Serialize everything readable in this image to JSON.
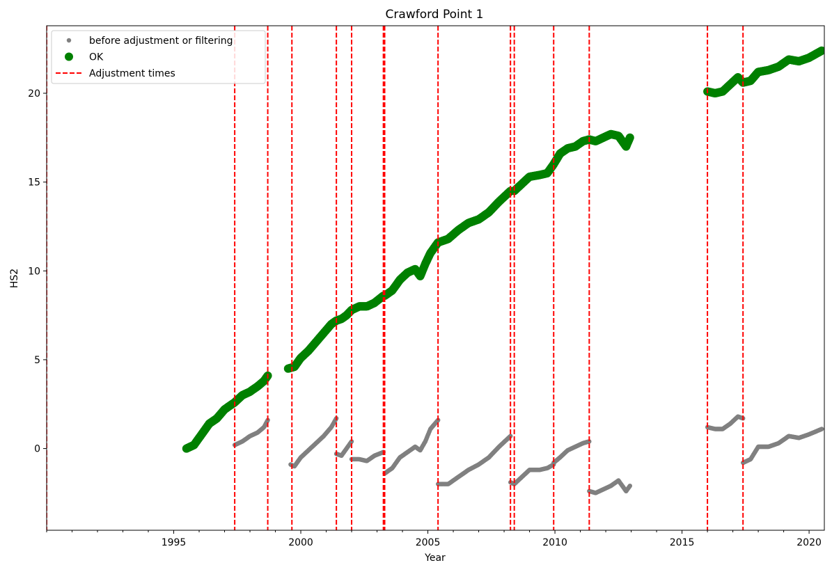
{
  "chart_data": {
    "type": "scatter",
    "title": "Crawford Point 1",
    "xlabel": "Year",
    "ylabel": "HS2",
    "xlim": [
      1990.0,
      2020.6
    ],
    "ylim": [
      -4.6,
      23.8
    ],
    "xticks": [
      1995,
      2000,
      2005,
      2010,
      2015,
      2020
    ],
    "yticks": [
      0,
      5,
      10,
      15,
      20
    ],
    "grid": false,
    "legend_position": "top-left",
    "legend": [
      {
        "label": "before adjustment or filtering",
        "marker": "small-dot",
        "color": "#808080"
      },
      {
        "label": "OK",
        "marker": "large-dot",
        "color": "#008000"
      },
      {
        "label": "Adjustment times",
        "marker": "dashed-line",
        "color": "#ff0000"
      }
    ],
    "colors": {
      "raw": "#808080",
      "ok": "#008000",
      "adjustment": "#ff0000"
    },
    "adjustment_times": [
      1990.0,
      1997.4,
      1998.7,
      1999.65,
      2001.4,
      2002.0,
      2003.25,
      2003.3,
      2005.4,
      2008.25,
      2008.4,
      2009.95,
      2011.35,
      2016.0,
      2017.4
    ],
    "series": [
      {
        "name": "before adjustment or filtering",
        "segments": [
          {
            "x": [
              1997.4,
              1997.7,
              1998.0,
              1998.3,
              1998.55,
              1998.7
            ],
            "y": [
              0.2,
              0.4,
              0.7,
              0.9,
              1.2,
              1.6
            ]
          },
          {
            "x": [
              1999.6,
              1999.75,
              2000.0,
              2000.3,
              2000.6,
              2000.9,
              2001.2,
              2001.4
            ],
            "y": [
              -0.9,
              -1.0,
              -0.5,
              -0.1,
              0.3,
              0.7,
              1.2,
              1.7
            ]
          },
          {
            "x": [
              2001.4,
              2001.6,
              2001.8,
              2002.0
            ],
            "y": [
              -0.3,
              -0.4,
              0.0,
              0.4
            ]
          },
          {
            "x": [
              2002.0,
              2002.3,
              2002.6,
              2002.9,
              2003.25
            ],
            "y": [
              -0.6,
              -0.6,
              -0.7,
              -0.4,
              -0.2
            ]
          },
          {
            "x": [
              2003.3,
              2003.6,
              2003.9,
              2004.2,
              2004.5,
              2004.7,
              2004.9,
              2005.1,
              2005.4
            ],
            "y": [
              -1.4,
              -1.1,
              -0.5,
              -0.2,
              0.1,
              -0.1,
              0.4,
              1.1,
              1.6
            ]
          },
          {
            "x": [
              2005.4,
              2005.8,
              2006.2,
              2006.6,
              2007.0,
              2007.4,
              2007.8,
              2008.25
            ],
            "y": [
              -2.0,
              -2.0,
              -1.6,
              -1.2,
              -0.9,
              -0.5,
              0.1,
              0.7
            ]
          },
          {
            "x": [
              2008.25,
              2008.4
            ],
            "y": [
              -1.9,
              -2.0
            ]
          },
          {
            "x": [
              2008.4,
              2008.7,
              2009.0,
              2009.4,
              2009.7,
              2009.95
            ],
            "y": [
              -2.0,
              -1.6,
              -1.2,
              -1.2,
              -1.1,
              -0.9
            ]
          },
          {
            "x": [
              2009.95,
              2010.2,
              2010.5,
              2010.8,
              2011.1,
              2011.35
            ],
            "y": [
              -0.8,
              -0.5,
              -0.1,
              0.1,
              0.3,
              0.4
            ]
          },
          {
            "x": [
              2011.35,
              2011.6,
              2011.9,
              2012.2,
              2012.5,
              2012.8,
              2012.95
            ],
            "y": [
              -2.4,
              -2.5,
              -2.3,
              -2.1,
              -1.8,
              -2.4,
              -2.1
            ]
          },
          {
            "x": [
              2016.0,
              2016.3,
              2016.6,
              2016.9,
              2017.2,
              2017.4
            ],
            "y": [
              1.2,
              1.1,
              1.1,
              1.4,
              1.8,
              1.7
            ]
          },
          {
            "x": [
              2017.4,
              2017.7,
              2018.0,
              2018.4,
              2018.8,
              2019.2,
              2019.6,
              2020.0,
              2020.5
            ],
            "y": [
              -0.8,
              -0.6,
              0.1,
              0.1,
              0.3,
              0.7,
              0.6,
              0.8,
              1.1
            ]
          }
        ]
      },
      {
        "name": "OK",
        "segments": [
          {
            "x": [
              1995.5,
              1995.8,
              1996.1,
              1996.4,
              1996.7,
              1997.0,
              1997.4,
              1997.7,
              1998.0,
              1998.3,
              1998.55,
              1998.7
            ],
            "y": [
              0.0,
              0.2,
              0.8,
              1.4,
              1.7,
              2.2,
              2.6,
              3.0,
              3.2,
              3.5,
              3.8,
              4.1
            ]
          },
          {
            "x": [
              1999.5,
              1999.75,
              2000.0,
              2000.3,
              2000.6,
              2000.9,
              2001.2,
              2001.4,
              2001.6,
              2001.8,
              2002.0,
              2002.3,
              2002.6,
              2002.9,
              2003.25
            ],
            "y": [
              4.5,
              4.6,
              5.1,
              5.5,
              6.0,
              6.5,
              7.0,
              7.2,
              7.3,
              7.5,
              7.8,
              8.0,
              8.0,
              8.2,
              8.6
            ]
          },
          {
            "x": [
              2003.3,
              2003.6,
              2003.9,
              2004.2,
              2004.5,
              2004.7,
              2004.9,
              2005.1,
              2005.4,
              2005.8,
              2006.2,
              2006.6,
              2007.0,
              2007.4,
              2007.8,
              2008.25
            ],
            "y": [
              8.6,
              8.9,
              9.5,
              9.9,
              10.1,
              9.7,
              10.4,
              11.0,
              11.6,
              11.8,
              12.3,
              12.7,
              12.9,
              13.3,
              13.9,
              14.5
            ]
          },
          {
            "x": [
              2008.4,
              2008.7,
              2009.0,
              2009.4,
              2009.7,
              2009.95,
              2010.2,
              2010.5,
              2010.8,
              2011.1,
              2011.35,
              2011.6,
              2011.9,
              2012.2,
              2012.5,
              2012.8,
              2012.95
            ],
            "y": [
              14.5,
              14.9,
              15.3,
              15.4,
              15.5,
              16.0,
              16.6,
              16.9,
              17.0,
              17.3,
              17.4,
              17.3,
              17.5,
              17.7,
              17.6,
              17.0,
              17.5
            ]
          },
          {
            "x": [
              2016.0,
              2016.3,
              2016.6,
              2016.9,
              2017.2,
              2017.4,
              2017.7,
              2018.0,
              2018.4,
              2018.8,
              2019.2,
              2019.6,
              2020.0,
              2020.5
            ],
            "y": [
              20.1,
              20.0,
              20.1,
              20.5,
              20.9,
              20.6,
              20.7,
              21.2,
              21.3,
              21.5,
              21.9,
              21.8,
              22.0,
              22.4
            ]
          }
        ]
      }
    ]
  }
}
